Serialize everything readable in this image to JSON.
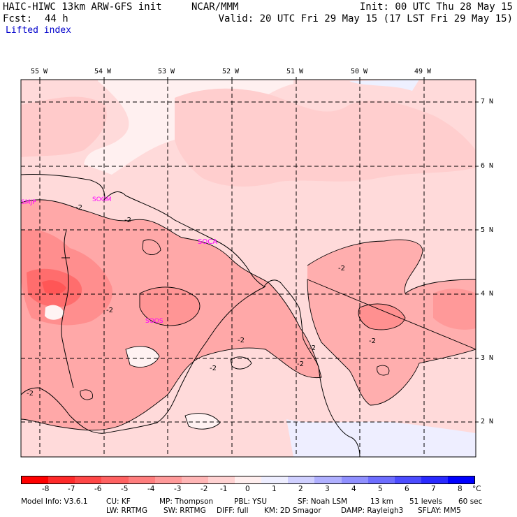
{
  "header": {
    "model_title": "HAIC-HIWC 13km ARW-GFS init",
    "org": "NCAR/MMM",
    "init": "Init: 00 UTC Thu 28 May 15",
    "fcst_label": "Fcst:",
    "fcst_value": "44 h",
    "valid": "Valid: 20 UTC Fri 29 May 15 (17 LST Fri 29 May 15)",
    "field": "Lifted index"
  },
  "axes": {
    "lon_labels": [
      "55 W",
      "54 W",
      "53 W",
      "52 W",
      "51 W",
      "50 W",
      "49 W"
    ],
    "lat_labels": [
      "7 N",
      "6 N",
      "5 N",
      "4 N",
      "3 N",
      "2 N"
    ]
  },
  "stations": [
    {
      "id": "SMJP",
      "color": "#ff00ff"
    },
    {
      "id": "SOGM",
      "color": "#ff00ff"
    },
    {
      "id": "SOCA",
      "color": "#ff00ff"
    },
    {
      "id": "SOOS",
      "color": "#ff00ff"
    }
  ],
  "contour_labels": [
    "-2",
    "-2",
    "-2",
    "-2",
    "-2",
    "-2",
    "-2",
    "-2",
    "-2",
    "-2"
  ],
  "colorbar": {
    "ticks": [
      "-8",
      "-7",
      "-6",
      "-5",
      "-4",
      "-3",
      "-2",
      "-1",
      "0",
      "1",
      "2",
      "3",
      "4",
      "5",
      "6",
      "7",
      "8"
    ],
    "unit": "°C",
    "colors": [
      "#ff0000",
      "#ff2a2a",
      "#ff4747",
      "#ff6262",
      "#ff7e7e",
      "#ff9a9a",
      "#ffb6b6",
      "#ffd2d2",
      "#ffeeee",
      "#eeeeff",
      "#d0d0ff",
      "#b0b0ff",
      "#9090ff",
      "#6e6eff",
      "#4c4cff",
      "#2a2aff",
      "#0000ff"
    ]
  },
  "footer": {
    "line1": [
      "Model Info: V3.6.1",
      "CU: KF",
      "MP: Thompson",
      "PBL: YSU",
      "SF: Noah LSM",
      "13 km",
      "51 levels",
      "60 sec"
    ],
    "line2": [
      "LW: RRTMG",
      "SW: RRTMG",
      "DIFF: full",
      "KM: 2D Smagor",
      "DAMP: Rayleigh3",
      "SFLAY: MM5"
    ]
  }
}
